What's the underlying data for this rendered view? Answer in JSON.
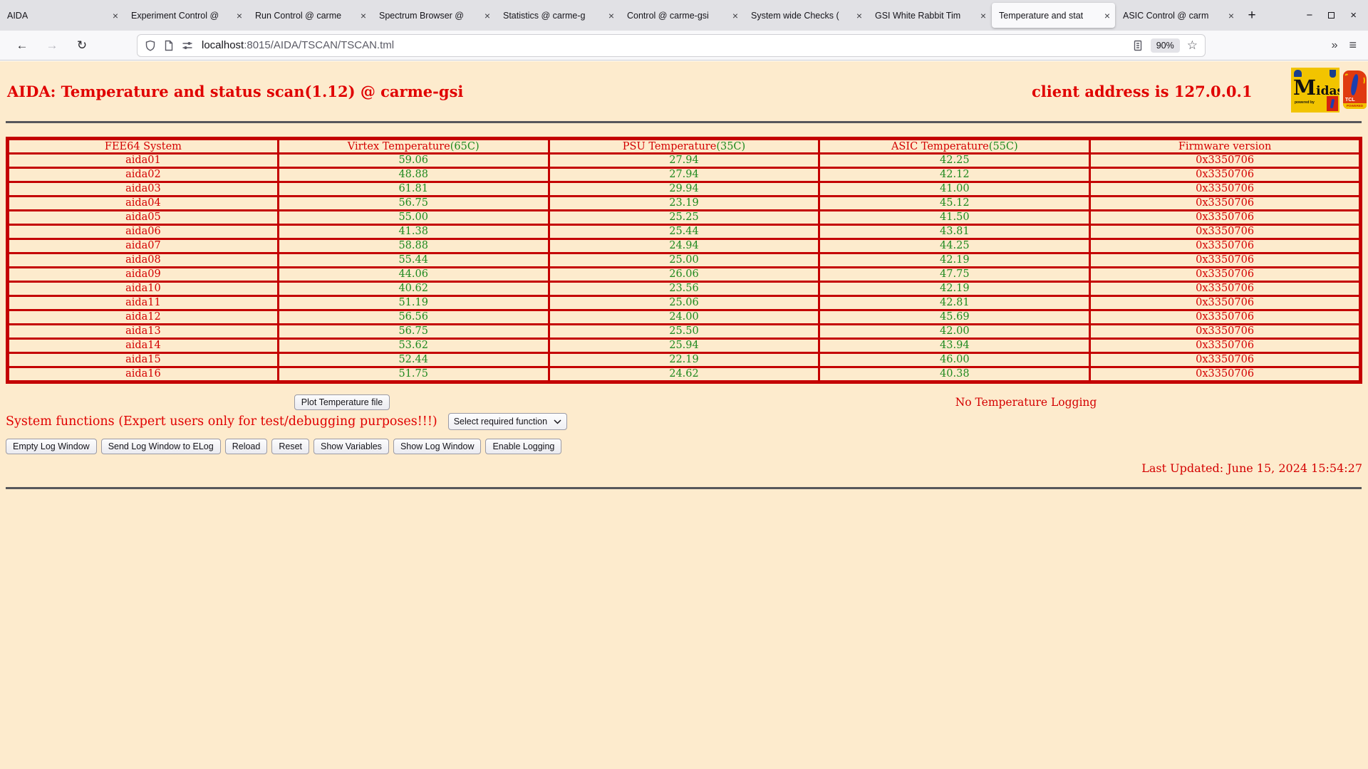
{
  "browser": {
    "tabs": [
      {
        "label": "AIDA",
        "active": false
      },
      {
        "label": "Experiment Control @",
        "active": false
      },
      {
        "label": "Run Control @ carme",
        "active": false
      },
      {
        "label": "Spectrum Browser @",
        "active": false
      },
      {
        "label": "Statistics @ carme-g",
        "active": false
      },
      {
        "label": "Control @ carme-gsi",
        "active": false
      },
      {
        "label": "System wide Checks (",
        "active": false
      },
      {
        "label": "GSI White Rabbit Tim",
        "active": false
      },
      {
        "label": "Temperature and stat",
        "active": true
      },
      {
        "label": "ASIC Control @ carm",
        "active": false
      }
    ],
    "new_tab_label": "+",
    "window_controls": {
      "minimize": "−",
      "close": "×"
    },
    "nav": {
      "back": "←",
      "forward": "→",
      "reload": "↻",
      "overflow": "»",
      "menu": "≡",
      "star": "☆"
    },
    "url": {
      "host": "localhost",
      "path": ":8015/AIDA/TSCAN/TSCAN.tml"
    },
    "zoom_badge": "90%"
  },
  "page": {
    "title": "AIDA: Temperature and status scan(1.12) @ carme-gsi",
    "client_address": "client address is 127.0.0.1",
    "logos": {
      "midas_cap": "M",
      "midas_rest": "idas",
      "midas_powered": "powered by",
      "tcl_name": "TCL",
      "tcl_powered": "POWERED"
    },
    "table": {
      "headers": [
        {
          "label": "FEE64 System",
          "limit": ""
        },
        {
          "label": "Virtex Temperature",
          "limit": "(65C)"
        },
        {
          "label": "PSU Temperature",
          "limit": "(35C)"
        },
        {
          "label": "ASIC Temperature",
          "limit": "(55C)"
        },
        {
          "label": "Firmware version",
          "limit": ""
        }
      ],
      "rows": [
        {
          "name": "aida01",
          "virtex": "59.06",
          "psu": "27.94",
          "asic": "42.25",
          "firmware": "0x3350706"
        },
        {
          "name": "aida02",
          "virtex": "48.88",
          "psu": "27.94",
          "asic": "42.12",
          "firmware": "0x3350706"
        },
        {
          "name": "aida03",
          "virtex": "61.81",
          "psu": "29.94",
          "asic": "41.00",
          "firmware": "0x3350706"
        },
        {
          "name": "aida04",
          "virtex": "56.75",
          "psu": "23.19",
          "asic": "45.12",
          "firmware": "0x3350706"
        },
        {
          "name": "aida05",
          "virtex": "55.00",
          "psu": "25.25",
          "asic": "41.50",
          "firmware": "0x3350706"
        },
        {
          "name": "aida06",
          "virtex": "41.38",
          "psu": "25.44",
          "asic": "43.81",
          "firmware": "0x3350706"
        },
        {
          "name": "aida07",
          "virtex": "58.88",
          "psu": "24.94",
          "asic": "44.25",
          "firmware": "0x3350706"
        },
        {
          "name": "aida08",
          "virtex": "55.44",
          "psu": "25.00",
          "asic": "42.19",
          "firmware": "0x3350706"
        },
        {
          "name": "aida09",
          "virtex": "44.06",
          "psu": "26.06",
          "asic": "47.75",
          "firmware": "0x3350706"
        },
        {
          "name": "aida10",
          "virtex": "40.62",
          "psu": "23.56",
          "asic": "42.19",
          "firmware": "0x3350706"
        },
        {
          "name": "aida11",
          "virtex": "51.19",
          "psu": "25.06",
          "asic": "42.81",
          "firmware": "0x3350706"
        },
        {
          "name": "aida12",
          "virtex": "56.56",
          "psu": "24.00",
          "asic": "45.69",
          "firmware": "0x3350706"
        },
        {
          "name": "aida13",
          "virtex": "56.75",
          "psu": "25.50",
          "asic": "42.00",
          "firmware": "0x3350706"
        },
        {
          "name": "aida14",
          "virtex": "53.62",
          "psu": "25.94",
          "asic": "43.94",
          "firmware": "0x3350706"
        },
        {
          "name": "aida15",
          "virtex": "52.44",
          "psu": "22.19",
          "asic": "46.00",
          "firmware": "0x3350706"
        },
        {
          "name": "aida16",
          "virtex": "51.75",
          "psu": "24.62",
          "asic": "40.38",
          "firmware": "0x3350706"
        }
      ]
    },
    "plot_button_label": "Plot Temperature file",
    "no_logging_text": "No Temperature Logging",
    "system_functions_label": "System functions (Expert users only for test/debugging purposes!!!)",
    "function_select_value": "Select required function",
    "action_buttons": [
      "Empty Log Window",
      "Send Log Window to ELog",
      "Reload",
      "Reset",
      "Show Variables",
      "Show Log Window",
      "Enable Logging"
    ],
    "last_updated": "Last Updated: June 15, 2024 15:54:27"
  },
  "colors": {
    "page_background": "#FDEBCD",
    "red": "#D40000",
    "green": "#1F8A1F",
    "table_border": "#C40000"
  }
}
